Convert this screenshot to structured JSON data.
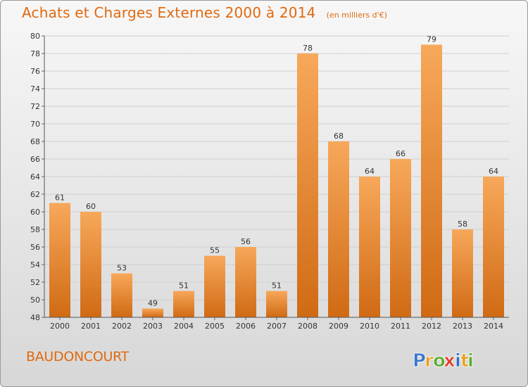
{
  "header": {
    "title": "Achats et Charges Externes 2000 à 2014",
    "subtitle": "(en milliers d'€)"
  },
  "footer": {
    "commune": "BAUDONCOURT",
    "logo_text": "Proxiti",
    "logo_letters": [
      {
        "ch": "P",
        "color": "#3a78c9"
      },
      {
        "ch": "r",
        "color": "#e8a020"
      },
      {
        "ch": "o",
        "color": "#5aaa2e"
      },
      {
        "ch": "x",
        "color": "#e23b2b"
      },
      {
        "ch": "i",
        "color": "#2f6fc4"
      },
      {
        "ch": "t",
        "color": "#e8a020"
      },
      {
        "ch": "i",
        "color": "#5aaa2e"
      }
    ]
  },
  "colors": {
    "accent": "#e06a10",
    "bar_light": "#f7a85a",
    "bar_dark": "#d06a14"
  },
  "chart_data": {
    "type": "bar",
    "title": "Achats et Charges Externes 2000 à 2014",
    "subtitle": "(en milliers d'€)",
    "xlabel": "",
    "ylabel": "",
    "categories": [
      "2000",
      "2001",
      "2002",
      "2003",
      "2004",
      "2005",
      "2006",
      "2007",
      "2008",
      "2009",
      "2010",
      "2011",
      "2012",
      "2013",
      "2014"
    ],
    "values": [
      61,
      60,
      53,
      49,
      51,
      55,
      56,
      51,
      78,
      68,
      64,
      66,
      79,
      58,
      64
    ],
    "data_labels": [
      "61",
      "60",
      "53",
      "49",
      "51",
      "55",
      "56",
      "51",
      "78",
      "68",
      "64",
      "66",
      "79",
      "58",
      "64"
    ],
    "ylim": [
      48,
      80
    ],
    "yticks": [
      48,
      50,
      52,
      54,
      56,
      58,
      60,
      62,
      64,
      66,
      68,
      70,
      72,
      74,
      76,
      78,
      80
    ],
    "grid": "horizontal",
    "legend": "none"
  }
}
